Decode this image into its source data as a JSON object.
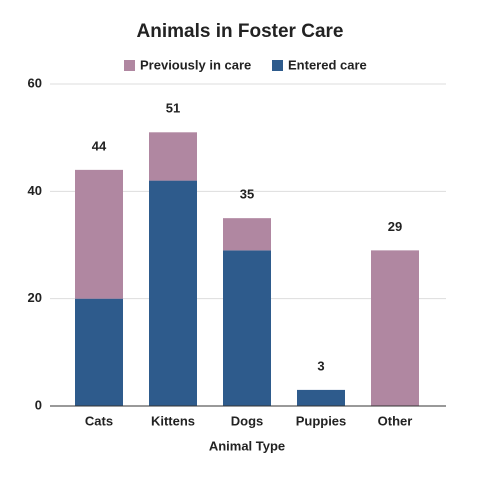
{
  "chart_data": {
    "type": "stacked_bar",
    "title": "Animals in Foster Care",
    "x_label": "Animal Type",
    "categories": [
      "Cats",
      "Kittens",
      "Dogs",
      "Puppies",
      "Other"
    ],
    "series": [
      {
        "name": "Previously in care",
        "color": "#b087a1",
        "values": [
          24,
          9,
          6,
          0,
          29
        ]
      },
      {
        "name": "Entered care",
        "color": "#2e5b8c",
        "values": [
          20,
          42,
          29,
          3,
          0
        ]
      }
    ],
    "totals": [
      44,
      51,
      35,
      3,
      29
    ],
    "ylim": [
      0,
      60
    ],
    "yticks": [
      0,
      20,
      40,
      60
    ],
    "grid": true,
    "legend": "top"
  }
}
